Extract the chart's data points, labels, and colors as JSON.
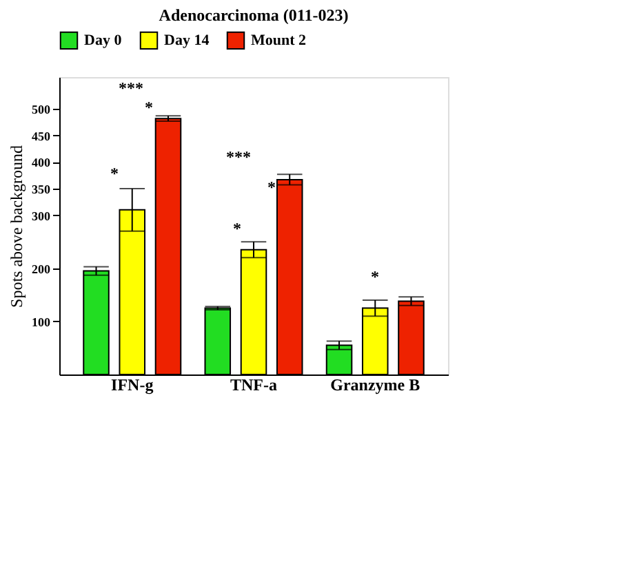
{
  "chart_data": {
    "type": "bar",
    "title": "Adenocarcinoma (011-023)",
    "ylabel": "Spots above background",
    "categories": [
      "IFN-g",
      "TNF-a",
      "Granzyme B"
    ],
    "series": [
      {
        "name": "Day 0",
        "color": "#22dd22",
        "values": [
          195,
          125,
          55
        ],
        "errors": [
          8,
          3,
          8
        ]
      },
      {
        "name": "Day 14",
        "color": "#ffff00",
        "values": [
          310,
          235,
          125
        ],
        "errors": [
          40,
          15,
          15
        ]
      },
      {
        "name": "Mount 2",
        "color": "#ee2200",
        "values": [
          482,
          367,
          138
        ],
        "errors": [
          5,
          10,
          8
        ]
      }
    ],
    "ylim": [
      0,
      560
    ],
    "yticks": [
      100,
      200,
      300,
      350,
      400,
      450,
      500
    ],
    "grid": false,
    "legend": "top",
    "annotations": [
      "***",
      "*",
      "*",
      "***",
      "*",
      "*",
      "*"
    ]
  }
}
